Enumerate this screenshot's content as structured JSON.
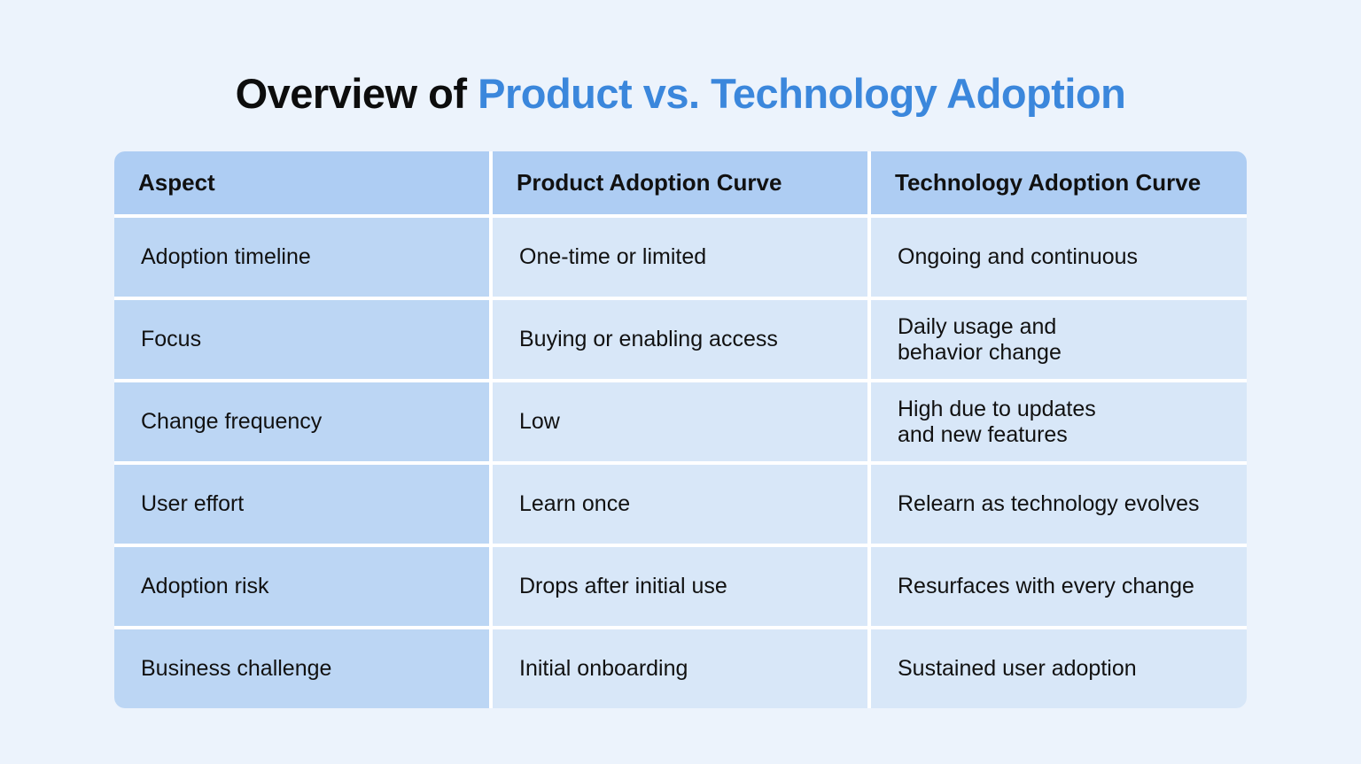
{
  "title": {
    "prefix": "Overview of",
    "highlight": "Product vs. Technology Adoption"
  },
  "colors": {
    "background": "#ecf3fc",
    "accent": "#3b87dc",
    "header_bg": "#aecdf3",
    "aspect_bg": "#bcd6f4",
    "value_bg": "#d8e7f8"
  },
  "table": {
    "headers": [
      "Aspect",
      "Product Adoption Curve",
      "Technology Adoption Curve"
    ],
    "rows": [
      [
        "Adoption timeline",
        "One-time or limited",
        "Ongoing and continuous"
      ],
      [
        "Focus",
        "Buying or enabling access",
        "Daily usage and\nbehavior change"
      ],
      [
        "Change frequency",
        "Low",
        "High due to updates\nand new features"
      ],
      [
        "User effort",
        "Learn once",
        "Relearn as technology evolves"
      ],
      [
        "Adoption risk",
        "Drops after initial use",
        "Resurfaces with every change"
      ],
      [
        "Business challenge",
        "Initial onboarding",
        "Sustained user adoption"
      ]
    ]
  }
}
